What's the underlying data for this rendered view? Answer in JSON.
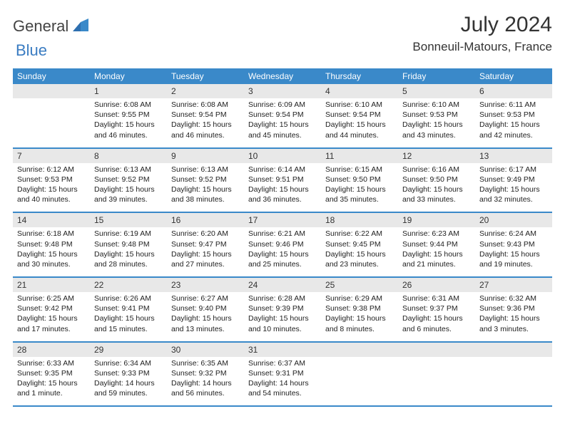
{
  "logo": {
    "part1": "General",
    "part2": "Blue"
  },
  "title": "July 2024",
  "location": "Bonneuil-Matours, France",
  "colors": {
    "header_bg": "#3a89c9",
    "header_fg": "#ffffff",
    "daynum_bg": "#e8e8e8",
    "rule": "#3a89c9",
    "logo_blue": "#3a7cc2",
    "text": "#222222"
  },
  "weekdays": [
    "Sunday",
    "Monday",
    "Tuesday",
    "Wednesday",
    "Thursday",
    "Friday",
    "Saturday"
  ],
  "weeks": [
    {
      "days": [
        null,
        {
          "n": "1",
          "sr": "6:08 AM",
          "ss": "9:55 PM",
          "dl": "15 hours and 46 minutes."
        },
        {
          "n": "2",
          "sr": "6:08 AM",
          "ss": "9:54 PM",
          "dl": "15 hours and 46 minutes."
        },
        {
          "n": "3",
          "sr": "6:09 AM",
          "ss": "9:54 PM",
          "dl": "15 hours and 45 minutes."
        },
        {
          "n": "4",
          "sr": "6:10 AM",
          "ss": "9:54 PM",
          "dl": "15 hours and 44 minutes."
        },
        {
          "n": "5",
          "sr": "6:10 AM",
          "ss": "9:53 PM",
          "dl": "15 hours and 43 minutes."
        },
        {
          "n": "6",
          "sr": "6:11 AM",
          "ss": "9:53 PM",
          "dl": "15 hours and 42 minutes."
        }
      ]
    },
    {
      "days": [
        {
          "n": "7",
          "sr": "6:12 AM",
          "ss": "9:53 PM",
          "dl": "15 hours and 40 minutes."
        },
        {
          "n": "8",
          "sr": "6:13 AM",
          "ss": "9:52 PM",
          "dl": "15 hours and 39 minutes."
        },
        {
          "n": "9",
          "sr": "6:13 AM",
          "ss": "9:52 PM",
          "dl": "15 hours and 38 minutes."
        },
        {
          "n": "10",
          "sr": "6:14 AM",
          "ss": "9:51 PM",
          "dl": "15 hours and 36 minutes."
        },
        {
          "n": "11",
          "sr": "6:15 AM",
          "ss": "9:50 PM",
          "dl": "15 hours and 35 minutes."
        },
        {
          "n": "12",
          "sr": "6:16 AM",
          "ss": "9:50 PM",
          "dl": "15 hours and 33 minutes."
        },
        {
          "n": "13",
          "sr": "6:17 AM",
          "ss": "9:49 PM",
          "dl": "15 hours and 32 minutes."
        }
      ]
    },
    {
      "days": [
        {
          "n": "14",
          "sr": "6:18 AM",
          "ss": "9:48 PM",
          "dl": "15 hours and 30 minutes."
        },
        {
          "n": "15",
          "sr": "6:19 AM",
          "ss": "9:48 PM",
          "dl": "15 hours and 28 minutes."
        },
        {
          "n": "16",
          "sr": "6:20 AM",
          "ss": "9:47 PM",
          "dl": "15 hours and 27 minutes."
        },
        {
          "n": "17",
          "sr": "6:21 AM",
          "ss": "9:46 PM",
          "dl": "15 hours and 25 minutes."
        },
        {
          "n": "18",
          "sr": "6:22 AM",
          "ss": "9:45 PM",
          "dl": "15 hours and 23 minutes."
        },
        {
          "n": "19",
          "sr": "6:23 AM",
          "ss": "9:44 PM",
          "dl": "15 hours and 21 minutes."
        },
        {
          "n": "20",
          "sr": "6:24 AM",
          "ss": "9:43 PM",
          "dl": "15 hours and 19 minutes."
        }
      ]
    },
    {
      "days": [
        {
          "n": "21",
          "sr": "6:25 AM",
          "ss": "9:42 PM",
          "dl": "15 hours and 17 minutes."
        },
        {
          "n": "22",
          "sr": "6:26 AM",
          "ss": "9:41 PM",
          "dl": "15 hours and 15 minutes."
        },
        {
          "n": "23",
          "sr": "6:27 AM",
          "ss": "9:40 PM",
          "dl": "15 hours and 13 minutes."
        },
        {
          "n": "24",
          "sr": "6:28 AM",
          "ss": "9:39 PM",
          "dl": "15 hours and 10 minutes."
        },
        {
          "n": "25",
          "sr": "6:29 AM",
          "ss": "9:38 PM",
          "dl": "15 hours and 8 minutes."
        },
        {
          "n": "26",
          "sr": "6:31 AM",
          "ss": "9:37 PM",
          "dl": "15 hours and 6 minutes."
        },
        {
          "n": "27",
          "sr": "6:32 AM",
          "ss": "9:36 PM",
          "dl": "15 hours and 3 minutes."
        }
      ]
    },
    {
      "days": [
        {
          "n": "28",
          "sr": "6:33 AM",
          "ss": "9:35 PM",
          "dl": "15 hours and 1 minute."
        },
        {
          "n": "29",
          "sr": "6:34 AM",
          "ss": "9:33 PM",
          "dl": "14 hours and 59 minutes."
        },
        {
          "n": "30",
          "sr": "6:35 AM",
          "ss": "9:32 PM",
          "dl": "14 hours and 56 minutes."
        },
        {
          "n": "31",
          "sr": "6:37 AM",
          "ss": "9:31 PM",
          "dl": "14 hours and 54 minutes."
        },
        null,
        null,
        null
      ]
    }
  ],
  "labels": {
    "sunrise": "Sunrise:",
    "sunset": "Sunset:",
    "daylight": "Daylight:"
  }
}
